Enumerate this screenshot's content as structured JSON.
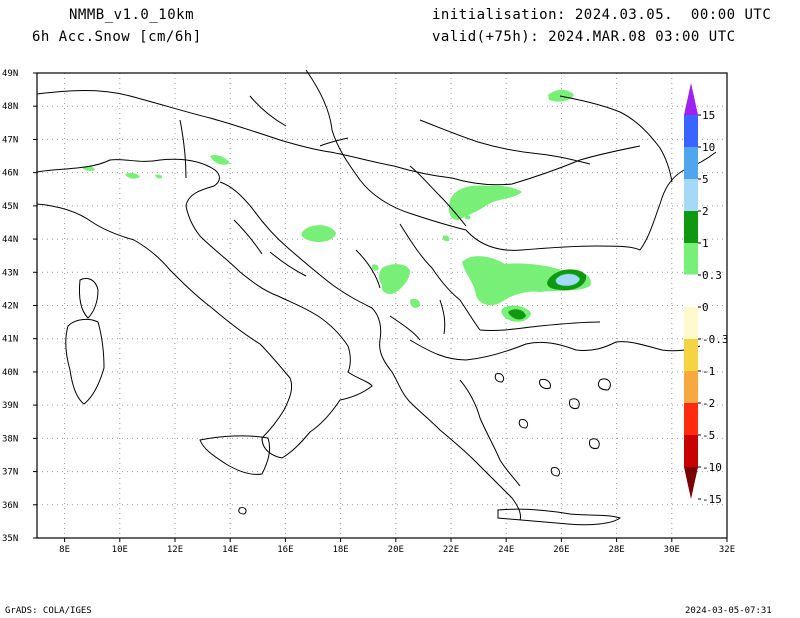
{
  "header": {
    "model": "NMMB_v1.0_10km",
    "field": "6h Acc.Snow [cm/6h]",
    "init": "initialisation: 2024.03.05.  00:00 UTC",
    "valid": "valid(+75h): 2024.MAR.08 03:00 UTC"
  },
  "map": {
    "lon_range": [
      7,
      32
    ],
    "lat_range": [
      35,
      49
    ],
    "lon_ticks": [
      "8E",
      "10E",
      "12E",
      "14E",
      "16E",
      "18E",
      "20E",
      "22E",
      "24E",
      "26E",
      "28E",
      "30E",
      "32E"
    ],
    "lat_ticks": [
      "35N",
      "36N",
      "37N",
      "38N",
      "39N",
      "40N",
      "41N",
      "42N",
      "43N",
      "44N",
      "45N",
      "46N",
      "47N",
      "48N",
      "49N"
    ],
    "grid": "dotted"
  },
  "colorbar": {
    "labels": [
      "15",
      "10",
      "5",
      "2",
      "1",
      "0.3",
      "0",
      "-0.3",
      "-1",
      "-2",
      "-5",
      "-10",
      "-15"
    ],
    "colors": [
      "#a020f0",
      "#3a64ff",
      "#4fa6ec",
      "#a6d8f8",
      "#109910",
      "#78f078",
      "#ffffff",
      "#fffacd",
      "#f4d442",
      "#f7a940",
      "#ff2a10",
      "#c80000",
      "#7a0000"
    ]
  },
  "footer": {
    "left": "GrADS: COLA/IGES",
    "right": "2024-03-05-07:31"
  }
}
